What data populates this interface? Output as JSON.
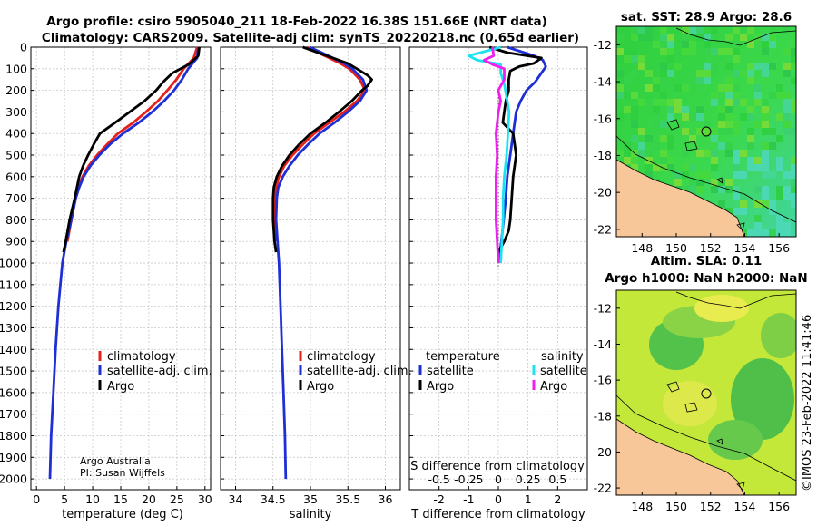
{
  "header": {
    "title_line1": "Argo profile: csiro 5905040_211 18-Feb-2022 16.38S 151.66E (NRT data)",
    "title_line2": "Climatology: CARS2009. Satellite-adj clim: synTS_20220218.nc (0.65d earlier)"
  },
  "credit": {
    "line1": "Argo Australia",
    "line2": "PI: Susan Wijffels"
  },
  "copyright": "©IMOS 23-Feb-2022 11:41:46",
  "colors": {
    "climatology": "#e8201a",
    "satellite": "#1f2fd6",
    "argo": "#000000",
    "sal_satellite": "#1de3f0",
    "sal_argo": "#f01ff0"
  },
  "chart_data": [
    {
      "type": "line",
      "id": "temperature",
      "xlabel": "temperature (deg C)",
      "xlim": [
        -1,
        31
      ],
      "xticks": [
        "0",
        "5",
        "10",
        "15",
        "20",
        "25",
        "30"
      ],
      "ylim": [
        0,
        2050
      ],
      "yticks": [
        "0",
        "100",
        "200",
        "300",
        "400",
        "500",
        "600",
        "700",
        "800",
        "900",
        "1000",
        "1100",
        "1200",
        "1300",
        "1400",
        "1500",
        "1600",
        "1700",
        "1800",
        "1900",
        "2000"
      ],
      "legend": [
        "climatology",
        "satellite-adj. clim.",
        "Argo"
      ],
      "series": [
        {
          "name": "climatology",
          "depth": [
            0,
            50,
            100,
            150,
            200,
            250,
            300,
            350,
            400,
            450,
            500,
            550,
            600,
            650,
            700,
            800,
            900
          ],
          "values": [
            28.6,
            28.0,
            26.2,
            24.9,
            23.3,
            21.6,
            19.5,
            17.2,
            14.5,
            12.6,
            10.8,
            9.3,
            8.2,
            7.4,
            6.9,
            6.2,
            5.5
          ]
        },
        {
          "name": "satellite-adj. clim.",
          "depth": [
            0,
            50,
            100,
            150,
            200,
            250,
            300,
            350,
            400,
            450,
            500,
            550,
            600,
            650,
            700,
            800,
            900,
            1000,
            1200,
            1400,
            1600,
            1800,
            2000
          ],
          "values": [
            28.8,
            28.6,
            27.0,
            25.9,
            24.5,
            22.7,
            20.6,
            18.2,
            15.4,
            13.1,
            11.2,
            9.6,
            8.4,
            7.6,
            7.0,
            6.2,
            5.3,
            4.6,
            3.9,
            3.4,
            3.0,
            2.6,
            2.4
          ]
        },
        {
          "name": "Argo",
          "depth": [
            0,
            40,
            80,
            120,
            160,
            200,
            250,
            300,
            350,
            400,
            450,
            500,
            550,
            600,
            700,
            800,
            900,
            950
          ],
          "values": [
            29.0,
            28.8,
            27.1,
            24.2,
            22.6,
            21.3,
            19.2,
            16.6,
            14.0,
            11.3,
            10.2,
            9.2,
            8.3,
            7.6,
            6.8,
            5.9,
            5.2,
            4.8
          ]
        }
      ]
    },
    {
      "type": "line",
      "id": "salinity",
      "xlabel": "salinity",
      "xlim": [
        33.8,
        36.2
      ],
      "xticks": [
        "34",
        "34.5",
        "35",
        "35.5",
        "36"
      ],
      "ylim": [
        0,
        2050
      ],
      "legend": [
        "climatology",
        "satellite-adj. clim.",
        "Argo"
      ],
      "series": [
        {
          "name": "climatology",
          "depth": [
            0,
            25,
            50,
            75,
            100,
            150,
            200,
            250,
            300,
            350,
            400,
            450,
            500,
            550,
            600,
            650,
            700,
            800,
            900
          ],
          "values": [
            34.95,
            35.1,
            35.25,
            35.4,
            35.52,
            35.66,
            35.73,
            35.62,
            35.45,
            35.25,
            35.05,
            34.9,
            34.76,
            34.65,
            34.58,
            34.54,
            34.52,
            34.52,
            34.54
          ]
        },
        {
          "name": "satellite-adj. clim.",
          "depth": [
            0,
            25,
            50,
            75,
            100,
            150,
            200,
            250,
            300,
            350,
            400,
            450,
            500,
            550,
            600,
            650,
            700,
            800,
            900,
            1000,
            1200,
            1400,
            1600,
            1800,
            2000
          ],
          "values": [
            34.99,
            35.15,
            35.3,
            35.45,
            35.56,
            35.7,
            35.75,
            35.66,
            35.5,
            35.32,
            35.12,
            34.97,
            34.83,
            34.72,
            34.63,
            34.57,
            34.55,
            34.54,
            34.56,
            34.58,
            34.6,
            34.62,
            34.64,
            34.66,
            34.67
          ]
        },
        {
          "name": "Argo",
          "depth": [
            0,
            25,
            50,
            75,
            100,
            130,
            150,
            180,
            200,
            250,
            300,
            350,
            400,
            450,
            500,
            550,
            600,
            650,
            700,
            800,
            900,
            950
          ],
          "values": [
            34.9,
            35.1,
            35.3,
            35.5,
            35.62,
            35.76,
            35.82,
            35.76,
            35.69,
            35.55,
            35.38,
            35.2,
            35.0,
            34.85,
            34.72,
            34.62,
            34.55,
            34.51,
            34.5,
            34.5,
            34.52,
            34.54
          ]
        }
      ]
    },
    {
      "type": "line",
      "id": "difference",
      "xlabel": "T difference from climatology",
      "xlabel_top": "S difference from climatology",
      "xlim": [
        -3,
        3
      ],
      "xticks": [
        "-2",
        "-1",
        "0",
        "1",
        "2"
      ],
      "xticks_top": [
        "-0.5",
        "-0.25",
        "0",
        "0.25",
        "0.5"
      ],
      "ylim": [
        0,
        2050
      ],
      "legend_groups": [
        {
          "heading": "temperature",
          "items": [
            "satellite",
            "Argo"
          ]
        },
        {
          "heading": "salinity",
          "items": [
            "satellite",
            "Argo"
          ]
        }
      ],
      "series": [
        {
          "name": "temperature satellite",
          "depth": [
            0,
            40,
            60,
            90,
            120,
            160,
            200,
            250,
            300,
            400,
            500,
            600,
            700,
            800,
            900,
            1000
          ],
          "values": [
            0.3,
            1.2,
            1.5,
            1.6,
            1.45,
            1.25,
            0.95,
            0.75,
            0.6,
            0.5,
            0.4,
            0.3,
            0.25,
            0.18,
            0.1,
            0.0
          ]
        },
        {
          "name": "temperature Argo",
          "depth": [
            0,
            25,
            50,
            75,
            90,
            110,
            150,
            200,
            250,
            300,
            350,
            400,
            500,
            600,
            700,
            800,
            850,
            900,
            950
          ],
          "values": [
            -0.3,
            0.3,
            1.45,
            1.2,
            0.7,
            0.4,
            0.35,
            0.35,
            0.25,
            0.2,
            0.15,
            0.5,
            0.6,
            0.5,
            0.45,
            0.4,
            0.35,
            0.2,
            0.0
          ]
        },
        {
          "name": "salinity satellite",
          "depth": [
            0,
            40,
            60,
            80,
            120,
            170,
            200,
            300,
            400,
            500,
            600,
            700,
            800,
            900,
            1000
          ],
          "values": [
            0.02,
            -0.25,
            -0.18,
            0.02,
            0.02,
            0.05,
            0.06,
            0.09,
            0.08,
            0.07,
            0.05,
            0.04,
            0.04,
            0.03,
            0.02
          ]
        },
        {
          "name": "salinity Argo",
          "depth": [
            0,
            40,
            60,
            80,
            100,
            150,
            200,
            250,
            300,
            400,
            500,
            600,
            700,
            800,
            900,
            1000
          ],
          "values": [
            -0.05,
            -0.04,
            -0.12,
            -0.05,
            0.05,
            0.05,
            0.0,
            0.02,
            0.0,
            -0.02,
            -0.01,
            -0.02,
            -0.02,
            -0.02,
            -0.01,
            0.0
          ]
        }
      ]
    }
  ],
  "maps": [
    {
      "id": "sst",
      "title_line1": "sat. SST: 28.9 Argo: 28.6",
      "title_line2": "",
      "xticks": [
        "148",
        "150",
        "152",
        "154",
        "156"
      ],
      "yticks": [
        "-12",
        "-14",
        "-16",
        "-18",
        "-20",
        "-22"
      ]
    },
    {
      "id": "sla",
      "title_line1": "Altim. SLA: 0.11",
      "title_line2": "Argo h1000: NaN h2000: NaN",
      "xticks": [
        "148",
        "150",
        "152",
        "154",
        "156"
      ],
      "yticks": [
        "-12",
        "-14",
        "-16",
        "-18",
        "-20",
        "-22"
      ]
    }
  ]
}
